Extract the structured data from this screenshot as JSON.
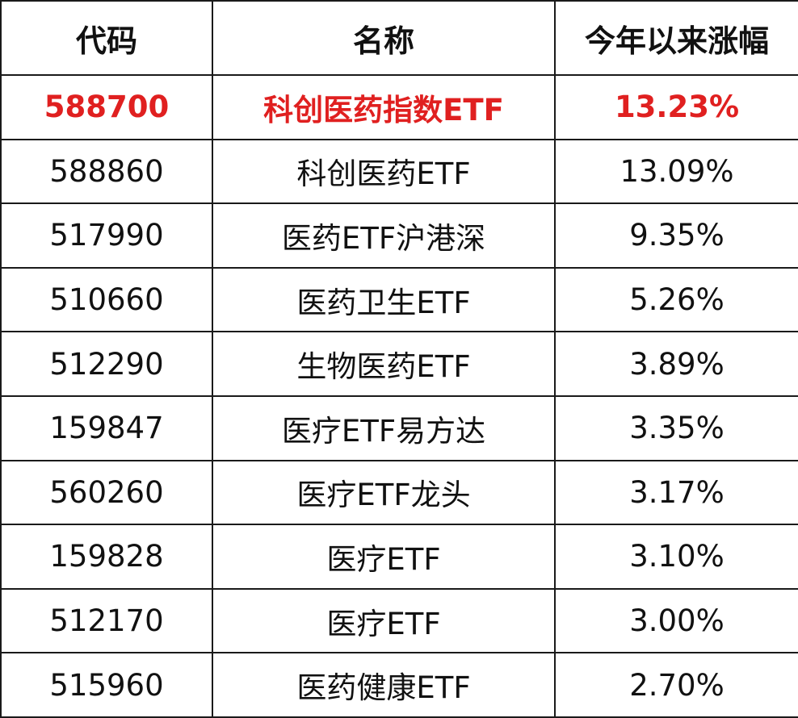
{
  "table": {
    "headers": [
      "代码",
      "名称",
      "今年以来涨幅"
    ],
    "highlight_color": "#e02020",
    "rows": [
      {
        "code": "588700",
        "name": "科创医药指数ETF",
        "change": "13.23%",
        "highlight": true
      },
      {
        "code": "588860",
        "name": "科创医药ETF",
        "change": "13.09%"
      },
      {
        "code": "517990",
        "name": "医药ETF沪港深",
        "change": "9.35%"
      },
      {
        "code": "510660",
        "name": "医药卫生ETF",
        "change": "5.26%"
      },
      {
        "code": "512290",
        "name": "生物医药ETF",
        "change": "3.89%"
      },
      {
        "code": "159847",
        "name": "医疗ETF易方达",
        "change": "3.35%"
      },
      {
        "code": "560260",
        "name": "医疗ETF龙头",
        "change": "3.17%"
      },
      {
        "code": "159828",
        "name": "医疗ETF",
        "change": "3.10%"
      },
      {
        "code": "512170",
        "name": "医疗ETF",
        "change": "3.00%"
      },
      {
        "code": "515960",
        "name": "医药健康ETF",
        "change": "2.70%"
      }
    ]
  }
}
